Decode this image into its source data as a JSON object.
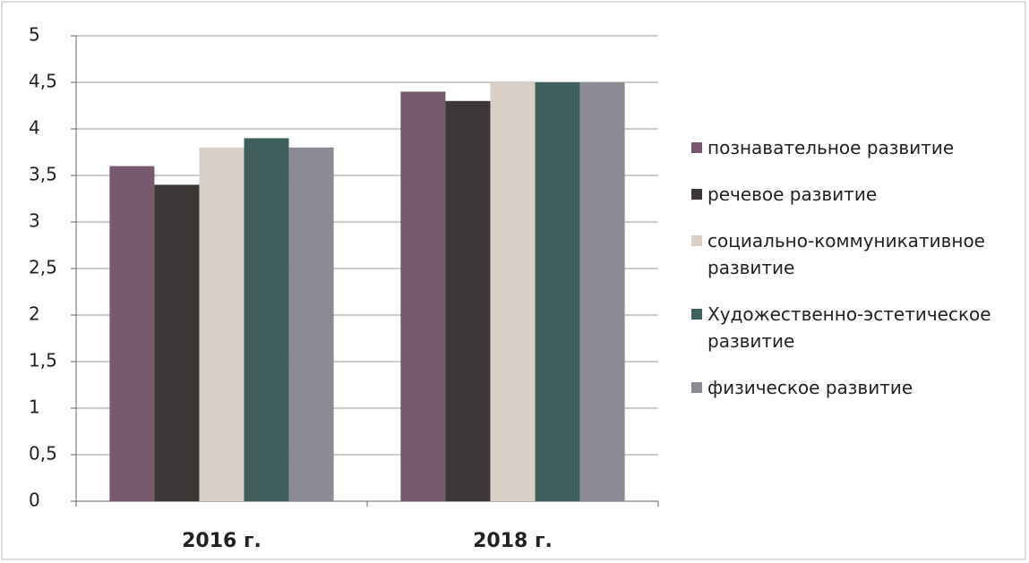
{
  "chart_data": {
    "type": "bar",
    "categories": [
      "2016 г.",
      "2018 г."
    ],
    "series": [
      {
        "name": "познавательное развитие",
        "color": "#76596c",
        "values": [
          3.6,
          4.4
        ]
      },
      {
        "name": "речевое развитие",
        "color": "#3d3838",
        "values": [
          3.4,
          4.3
        ]
      },
      {
        "name": "социально-коммуникативное развитие",
        "color": "#d9cfc6",
        "values": [
          3.8,
          4.5
        ]
      },
      {
        "name": "Художественно-эстетическое развитие",
        "color": "#3e5f5c",
        "values": [
          3.9,
          4.5
        ]
      },
      {
        "name": "физическое развитие",
        "color": "#8c8a92",
        "values": [
          3.8,
          4.5
        ]
      }
    ],
    "ylim": [
      0,
      5
    ],
    "yticks": [
      0,
      {
        "value": 0.5,
        "label": "0,5"
      },
      1,
      {
        "value": 1.5,
        "label": "1,5"
      },
      2,
      {
        "value": 2.5,
        "label": "2,5"
      },
      3,
      {
        "value": 3.5,
        "label": "3,5"
      },
      4,
      {
        "value": 4.5,
        "label": "4,5"
      },
      5
    ],
    "grid": true
  }
}
